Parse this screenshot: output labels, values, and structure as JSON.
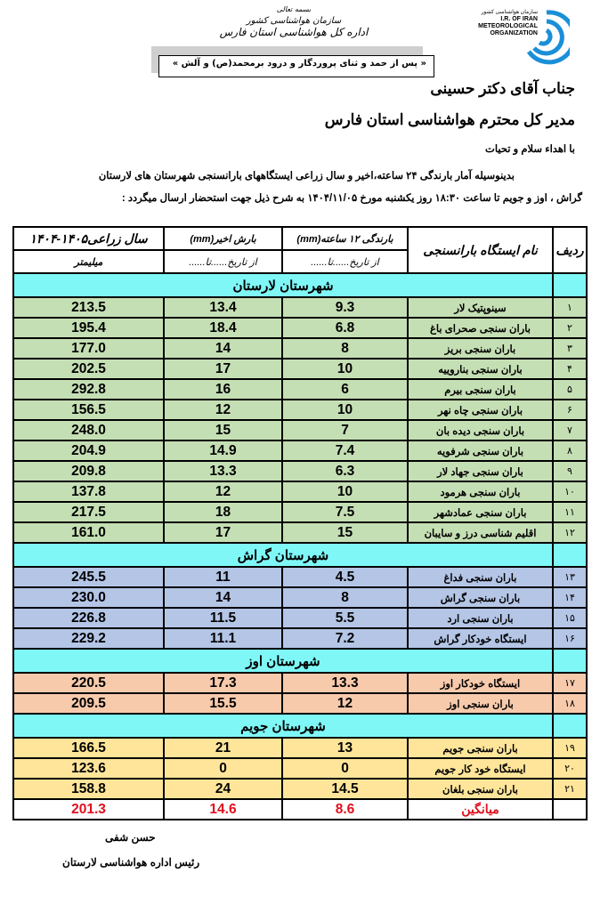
{
  "letterhead": {
    "logo_text": [
      "سازمان هواشناسی کشور",
      "I.R. OF IRAN",
      "METEOROLOGICAL",
      "ORGANIZATION"
    ],
    "org_lines": [
      "بسمه تعالی",
      "سازمان هواشناسی کشور",
      "اداره کل هواشناسی استان فارس"
    ],
    "blessing": "« پس از حمد و ثنای پروردگار و درود برمحمد(ص) و آلش »"
  },
  "letter": {
    "recipient": "جناب آقای دکتر حسینی",
    "title": "مدیر کل محترم هواشناسی استان فارس",
    "greeting": "با اهداء سلام و تحیات",
    "body_line1": "بدینوسیله آمار بارندگی ۲۴ ساعته،اخیر و سال زراعی ایستگاههای بارانسنجی  شهرستان های  لارستان",
    "body_line2": "گراش ، اوز و  جویم تا ساعت ۱۸:۳۰ روز یکشنبه  مورخ ۱۴۰۴/۱۱/۰۵  به شرح ذیل جهت استحضار ارسال میگردد :"
  },
  "table": {
    "headers": {
      "row": "ردیف",
      "station": "نام ایستگاه بارانسنجی",
      "rain12": "بارندگی ۱۲ ساعته(mm)",
      "rain12_sub": "از تاریخ......تا......",
      "recent": "بارش اخیر(mm)",
      "recent_sub": "از تاریخ......تا......",
      "year": "سال زراعی۱۴۰۵-۱۴۰۴",
      "year_sub": "میلیمتر"
    },
    "groups": [
      {
        "title": "شهرستان لارستان",
        "color": "#c5dfb4",
        "rows": [
          {
            "n": "۱",
            "name": "سینوپتیک لار",
            "rain12": "9.3",
            "recent": "13.4",
            "year": "213.5"
          },
          {
            "n": "۲",
            "name": "باران سنجی صحرای باغ",
            "rain12": "6.8",
            "recent": "18.4",
            "year": "195.4"
          },
          {
            "n": "۳",
            "name": "باران سنجی بریز",
            "rain12": "8",
            "recent": "14",
            "year": "177.0"
          },
          {
            "n": "۴",
            "name": "باران سنجی بناروییه",
            "rain12": "10",
            "recent": "17",
            "year": "202.5"
          },
          {
            "n": "۵",
            "name": "باران سنجی بیرم",
            "rain12": "6",
            "recent": "16",
            "year": "292.8"
          },
          {
            "n": "۶",
            "name": "باران سنجی چاه نهر",
            "rain12": "10",
            "recent": "12",
            "year": "156.5"
          },
          {
            "n": "۷",
            "name": "باران سنجی دیده بان",
            "rain12": "7",
            "recent": "15",
            "year": "248.0"
          },
          {
            "n": "۸",
            "name": "باران سنجی شرفویه",
            "rain12": "7.4",
            "recent": "14.9",
            "year": "204.9"
          },
          {
            "n": "۹",
            "name": "باران سنجی جهاد لار",
            "rain12": "6.3",
            "recent": "13.3",
            "year": "209.8"
          },
          {
            "n": "۱۰",
            "name": "باران سنجی هرمود",
            "rain12": "10",
            "recent": "12",
            "year": "137.8"
          },
          {
            "n": "۱۱",
            "name": "باران سنجی عمادشهر",
            "rain12": "7.5",
            "recent": "18",
            "year": "217.5"
          },
          {
            "n": "۱۲",
            "name": "اقلیم شناسی درز و سایبان",
            "rain12": "15",
            "recent": "17",
            "year": "161.0"
          }
        ]
      },
      {
        "title": "شهرستان گراش",
        "color": "#b4c5e6",
        "rows": [
          {
            "n": "۱۳",
            "name": "باران سنجی فداغ",
            "rain12": "4.5",
            "recent": "11",
            "year": "245.5"
          },
          {
            "n": "۱۴",
            "name": "باران سنجی گراش",
            "rain12": "8",
            "recent": "14",
            "year": "230.0"
          },
          {
            "n": "۱۵",
            "name": "باران سنجی ارد",
            "rain12": "5.5",
            "recent": "11.5",
            "year": "226.8"
          },
          {
            "n": "۱۶",
            "name": "ایستگاه خودکار گراش",
            "rain12": "7.2",
            "recent": "11.1",
            "year": "229.2"
          }
        ]
      },
      {
        "title": "شهرستان اوز",
        "color": "#f7caac",
        "rows": [
          {
            "n": "۱۷",
            "name": "ایستگاه خودکار اوز",
            "rain12": "13.3",
            "recent": "17.3",
            "year": "220.5"
          },
          {
            "n": "۱۸",
            "name": "باران سنجی اوز",
            "rain12": "12",
            "recent": "15.5",
            "year": "209.5"
          }
        ]
      },
      {
        "title": "شهرستان جویم",
        "color": "#fee59a",
        "rows": [
          {
            "n": "۱۹",
            "name": "باران سنجی جویم",
            "rain12": "13",
            "recent": "21",
            "year": "166.5"
          },
          {
            "n": "۲۰",
            "name": "ایستگاه خود کار جویم",
            "rain12": "0",
            "recent": "0",
            "year": "123.6"
          },
          {
            "n": "۲۱",
            "name": "باران سنجی بلغان",
            "rain12": "14.5",
            "recent": "24",
            "year": "158.8"
          }
        ]
      }
    ],
    "mean": {
      "label": "میانگین",
      "rain12": "8.6",
      "recent": "14.6",
      "year": "201.3",
      "color": "#e0101e"
    },
    "group_header_color": "#7ff7f7"
  },
  "signature": {
    "name": "حسن شفی",
    "position": "رئیس اداره هواشناسی  لارستان"
  }
}
